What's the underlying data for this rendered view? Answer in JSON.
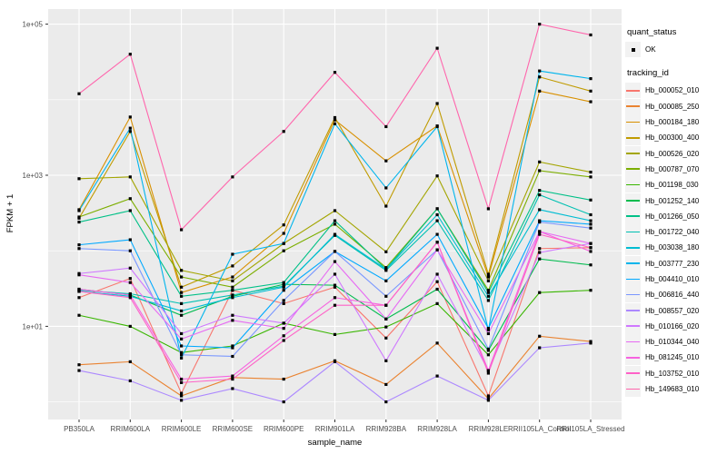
{
  "style": {
    "background": "#FFFFFF",
    "panel_bg": "#EBEBEB",
    "grid_color": "#FFFFFF",
    "tick_color": "#333333",
    "tick_label_color": "#4D4D4D",
    "point_color": "#000000",
    "legend_key_bg": "#F2F2F2"
  },
  "chart_data": {
    "type": "line",
    "title": "",
    "xlabel": "sample_name",
    "ylabel": "FPKM + 1",
    "x_categories": [
      "PB350LA",
      "RRIM600LA",
      "RRIM600LE",
      "RRIM600SE",
      "RRIM600PE",
      "RRIM901LA",
      "RRIM928BA",
      "RRIM928LA",
      "RRIM928LE",
      "RRII105LA_Control",
      "RRII105LA_Stressed"
    ],
    "y_axis": {
      "scale": "log10",
      "tick_labels": [
        "1e+01",
        "1e+03",
        "1e+05"
      ],
      "tick_values": [
        10,
        1000,
        100000
      ],
      "minor_tick_values": [
        1,
        100,
        10000
      ],
      "ylim_log10": [
        -0.23,
        5.2
      ]
    },
    "legend": {
      "position": "right",
      "quant_status": {
        "title": "quant_status",
        "items": [
          "OK"
        ]
      },
      "tracking_id": {
        "title": "tracking_id"
      }
    },
    "grid": true,
    "point_shape": "square",
    "series": [
      {
        "name": "Hb_000052_010",
        "color": "#F8766D",
        "values": [
          24,
          43,
          1.3,
          30,
          20,
          33,
          7,
          39,
          1.2,
          107,
          110
        ]
      },
      {
        "name": "Hb_000085_250",
        "color": "#EA8331",
        "values": [
          3.1,
          3.4,
          1.2,
          2.1,
          2.0,
          3.5,
          1.7,
          6,
          1.1,
          7.4,
          6.3
        ]
      },
      {
        "name": "Hb_000184_180",
        "color": "#D89000",
        "values": [
          350,
          5900,
          28,
          45,
          170,
          5400,
          1550,
          4500,
          45,
          13000,
          9400
        ]
      },
      {
        "name": "Hb_000300_400",
        "color": "#C09B00",
        "values": [
          270,
          3800,
          33,
          63,
          220,
          5800,
          390,
          8900,
          49,
          20000,
          13000
        ]
      },
      {
        "name": "Hb_000526_020",
        "color": "#A3A500",
        "values": [
          900,
          950,
          55,
          40,
          125,
          340,
          97,
          980,
          40,
          1500,
          1100
        ]
      },
      {
        "name": "Hb_000787_070",
        "color": "#7CAE00",
        "values": [
          280,
          490,
          45,
          33,
          100,
          225,
          60,
          360,
          30,
          1150,
          950
        ]
      },
      {
        "name": "Hb_001198_030",
        "color": "#39B600",
        "values": [
          14,
          10,
          4.5,
          5.5,
          11,
          7.8,
          9.8,
          20,
          4.2,
          28,
          30
        ]
      },
      {
        "name": "Hb_001252_140",
        "color": "#00BB4E",
        "values": [
          31,
          26,
          14,
          25,
          36,
          35,
          12.5,
          31,
          4.8,
          78,
          65
        ]
      },
      {
        "name": "Hb_001266_050",
        "color": "#00C087",
        "values": [
          240,
          340,
          25,
          30,
          38,
          250,
          57,
          360,
          28,
          630,
          470
        ]
      },
      {
        "name": "Hb_001722_040",
        "color": "#00C0B2",
        "values": [
          30,
          27,
          20,
          26,
          34,
          160,
          55,
          250,
          22,
          550,
          300
        ]
      },
      {
        "name": "Hb_003038_180",
        "color": "#00BDD2",
        "values": [
          29,
          25,
          16,
          24,
          33,
          165,
          57,
          300,
          25,
          350,
          250
        ]
      },
      {
        "name": "Hb_003777_230",
        "color": "#00B5EC",
        "values": [
          340,
          4200,
          3.8,
          90,
          125,
          4800,
          680,
          4400,
          9,
          24000,
          19000
        ]
      },
      {
        "name": "Hb_004410_010",
        "color": "#00A9FF",
        "values": [
          120,
          140,
          5.5,
          5.2,
          30,
          98,
          40,
          165,
          9.4,
          250,
          225
        ]
      },
      {
        "name": "Hb_006816_440",
        "color": "#7997FF",
        "values": [
          107,
          100,
          4.2,
          4.0,
          22,
          98,
          25,
          103,
          5,
          240,
          200
        ]
      },
      {
        "name": "Hb_008557_020",
        "color": "#AC88FF",
        "values": [
          2.6,
          1.9,
          1.05,
          1.5,
          1.0,
          3.4,
          1.0,
          2.2,
          1.05,
          5.2,
          6.0
        ]
      },
      {
        "name": "Hb_010166_020",
        "color": "#CF78FF",
        "values": [
          50,
          59,
          8,
          14,
          11,
          49,
          3.5,
          49,
          2.6,
          95,
          125
        ]
      },
      {
        "name": "Hb_010344_040",
        "color": "#E76BF3",
        "values": [
          48,
          38,
          6.8,
          12,
          9.4,
          72,
          12.5,
          103,
          8,
          180,
          125
        ]
      },
      {
        "name": "Hb_081245_010",
        "color": "#F763E0",
        "values": [
          31,
          26,
          2.0,
          2.2,
          7.5,
          24,
          19,
          130,
          2.6,
          180,
          98
        ]
      },
      {
        "name": "Hb_103752_010",
        "color": "#FF61C7",
        "values": [
          29,
          24,
          1.8,
          2.0,
          6.5,
          19,
          19,
          130,
          2.4,
          165,
          110
        ]
      },
      {
        "name": "Hb_149683_010",
        "color": "#FF65AC",
        "values": [
          12000,
          40000,
          190,
          950,
          3800,
          23000,
          4400,
          48000,
          360,
          100000,
          72000
        ]
      }
    ]
  }
}
